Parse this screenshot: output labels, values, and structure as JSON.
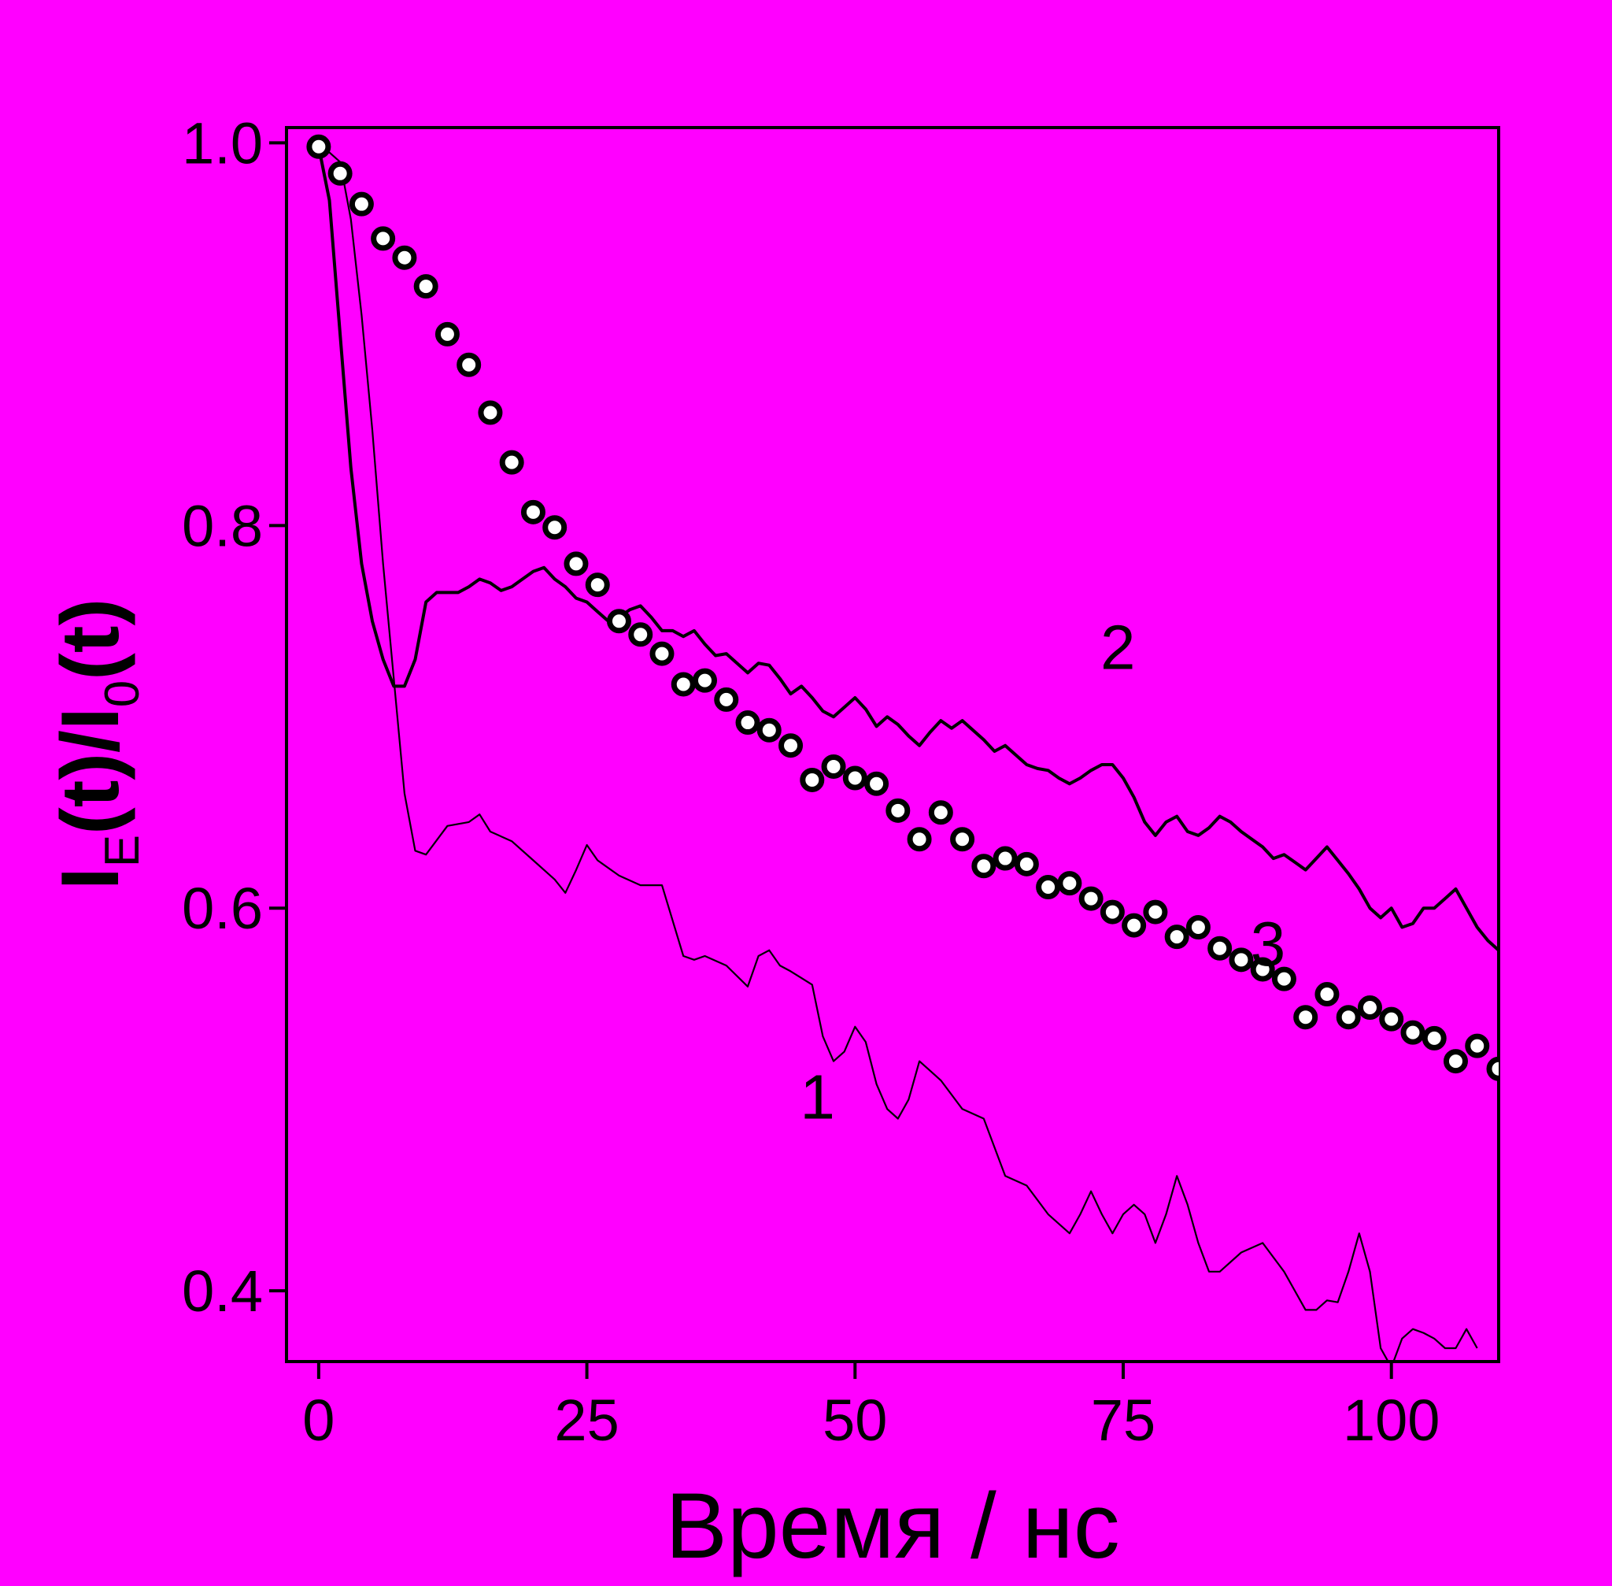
{
  "chart_data": {
    "type": "line",
    "xlabel": "Время / нс",
    "ylabel": {
      "main": "I",
      "sub1": "E",
      "mid": "(t)/I",
      "sub2": "0",
      "end": "(t)"
    },
    "xlim": [
      -3,
      110
    ],
    "ylim": [
      0.363,
      1.008
    ],
    "x_ticks": [
      0,
      25,
      50,
      75,
      100
    ],
    "x_tick_labels": [
      "0",
      "25",
      "50",
      "75",
      "100"
    ],
    "y_ticks": [
      0.4,
      0.6,
      0.8,
      1.0
    ],
    "y_tick_labels": [
      "0.4",
      "0.6",
      "0.8",
      "1.0"
    ],
    "grid": false,
    "legend": "none",
    "background_color": "#ff00ff",
    "series": [
      {
        "name": "1",
        "style": "thin-line",
        "color": "#000000",
        "x": [
          0,
          1,
          2,
          3,
          4,
          5,
          6,
          7,
          8,
          9,
          10,
          12,
          14,
          15,
          16,
          18,
          20,
          22,
          23,
          24,
          25,
          26,
          28,
          30,
          32,
          34,
          35,
          36,
          38,
          40,
          41,
          42,
          43,
          44,
          46,
          47,
          48,
          49,
          50,
          51,
          52,
          53,
          54,
          55,
          56,
          57,
          58,
          60,
          62,
          64,
          66,
          68,
          70,
          71,
          72,
          73,
          74,
          75,
          76,
          77,
          78,
          79,
          80,
          81,
          82,
          83,
          84,
          86,
          88,
          90,
          92,
          93,
          94,
          95,
          96,
          97,
          98,
          99,
          100,
          101,
          102,
          103,
          104,
          105,
          106,
          107,
          108
        ],
        "y": [
          0.998,
          0.995,
          0.99,
          0.96,
          0.91,
          0.85,
          0.78,
          0.72,
          0.66,
          0.63,
          0.628,
          0.643,
          0.645,
          0.649,
          0.64,
          0.635,
          0.625,
          0.615,
          0.608,
          0.62,
          0.633,
          0.625,
          0.617,
          0.612,
          0.612,
          0.575,
          0.573,
          0.575,
          0.57,
          0.559,
          0.575,
          0.578,
          0.57,
          0.567,
          0.56,
          0.533,
          0.52,
          0.525,
          0.538,
          0.53,
          0.508,
          0.495,
          0.49,
          0.5,
          0.52,
          0.515,
          0.51,
          0.495,
          0.49,
          0.46,
          0.455,
          0.44,
          0.43,
          0.44,
          0.452,
          0.44,
          0.43,
          0.44,
          0.445,
          0.44,
          0.425,
          0.44,
          0.46,
          0.445,
          0.425,
          0.41,
          0.41,
          0.42,
          0.425,
          0.41,
          0.39,
          0.39,
          0.395,
          0.394,
          0.41,
          0.43,
          0.41,
          0.37,
          0.36,
          0.375,
          0.38,
          0.378,
          0.375,
          0.37,
          0.37,
          0.38,
          0.37
        ]
      },
      {
        "name": "2",
        "style": "thick-line",
        "color": "#000000",
        "x": [
          0,
          1,
          2,
          3,
          4,
          5,
          6,
          7,
          8,
          9,
          10,
          11,
          12,
          13,
          14,
          15,
          16,
          17,
          18,
          19,
          20,
          21,
          22,
          23,
          24,
          25,
          26,
          27,
          28,
          29,
          30,
          31,
          32,
          33,
          34,
          35,
          36,
          37,
          38,
          39,
          40,
          41,
          42,
          43,
          44,
          45,
          46,
          47,
          48,
          49,
          50,
          51,
          52,
          53,
          54,
          55,
          56,
          57,
          58,
          59,
          60,
          61,
          62,
          63,
          64,
          65,
          66,
          67,
          68,
          69,
          70,
          71,
          72,
          73,
          74,
          75,
          76,
          77,
          78,
          79,
          80,
          81,
          82,
          83,
          84,
          85,
          86,
          87,
          88,
          89,
          90,
          91,
          92,
          93,
          94,
          95,
          96,
          97,
          98,
          99,
          100,
          101,
          102,
          103,
          104,
          105,
          106,
          107,
          108,
          109,
          110
        ],
        "y": [
          0.998,
          0.97,
          0.9,
          0.83,
          0.78,
          0.75,
          0.73,
          0.716,
          0.716,
          0.73,
          0.76,
          0.765,
          0.765,
          0.765,
          0.768,
          0.772,
          0.77,
          0.766,
          0.768,
          0.772,
          0.776,
          0.778,
          0.772,
          0.768,
          0.762,
          0.76,
          0.755,
          0.75,
          0.752,
          0.756,
          0.758,
          0.752,
          0.745,
          0.745,
          0.742,
          0.745,
          0.738,
          0.732,
          0.733,
          0.728,
          0.723,
          0.728,
          0.727,
          0.72,
          0.712,
          0.716,
          0.71,
          0.703,
          0.7,
          0.705,
          0.71,
          0.704,
          0.695,
          0.7,
          0.696,
          0.69,
          0.685,
          0.692,
          0.698,
          0.694,
          0.698,
          0.693,
          0.688,
          0.682,
          0.685,
          0.68,
          0.675,
          0.673,
          0.672,
          0.668,
          0.665,
          0.668,
          0.672,
          0.675,
          0.675,
          0.668,
          0.658,
          0.645,
          0.638,
          0.645,
          0.648,
          0.64,
          0.638,
          0.642,
          0.648,
          0.645,
          0.64,
          0.636,
          0.632,
          0.626,
          0.628,
          0.624,
          0.62,
          0.626,
          0.632,
          0.625,
          0.618,
          0.61,
          0.6,
          0.595,
          0.6,
          0.59,
          0.592,
          0.6,
          0.6,
          0.605,
          0.61,
          0.6,
          0.59,
          0.583,
          0.578
        ]
      },
      {
        "name": "3",
        "style": "markers-open-circle",
        "color": "#000000",
        "x": [
          0,
          2,
          4,
          6,
          8,
          10,
          12,
          14,
          16,
          18,
          20,
          22,
          24,
          26,
          28,
          30,
          32,
          34,
          36,
          38,
          40,
          42,
          44,
          46,
          48,
          50,
          52,
          54,
          56,
          58,
          60,
          62,
          64,
          66,
          68,
          70,
          72,
          74,
          76,
          78,
          80,
          82,
          84,
          86,
          88,
          90,
          92,
          94,
          96,
          98,
          100,
          102,
          104,
          106,
          108,
          110
        ],
        "y": [
          0.998,
          0.984,
          0.968,
          0.95,
          0.94,
          0.925,
          0.9,
          0.884,
          0.859,
          0.833,
          0.807,
          0.799,
          0.78,
          0.769,
          0.75,
          0.743,
          0.733,
          0.717,
          0.719,
          0.709,
          0.697,
          0.693,
          0.685,
          0.667,
          0.674,
          0.668,
          0.665,
          0.651,
          0.636,
          0.65,
          0.636,
          0.622,
          0.626,
          0.623,
          0.611,
          0.613,
          0.605,
          0.598,
          0.591,
          0.598,
          0.585,
          0.59,
          0.579,
          0.573,
          0.568,
          0.563,
          0.543,
          0.555,
          0.543,
          0.548,
          0.542,
          0.535,
          0.532,
          0.52,
          0.528,
          0.516
        ]
      }
    ],
    "annotations": [
      {
        "text": "1",
        "x": 46.5,
        "y": 0.49
      },
      {
        "text": "2",
        "x": 74.5,
        "y": 0.725
      },
      {
        "text": "3",
        "x": 88.5,
        "y": 0.57
      }
    ]
  }
}
